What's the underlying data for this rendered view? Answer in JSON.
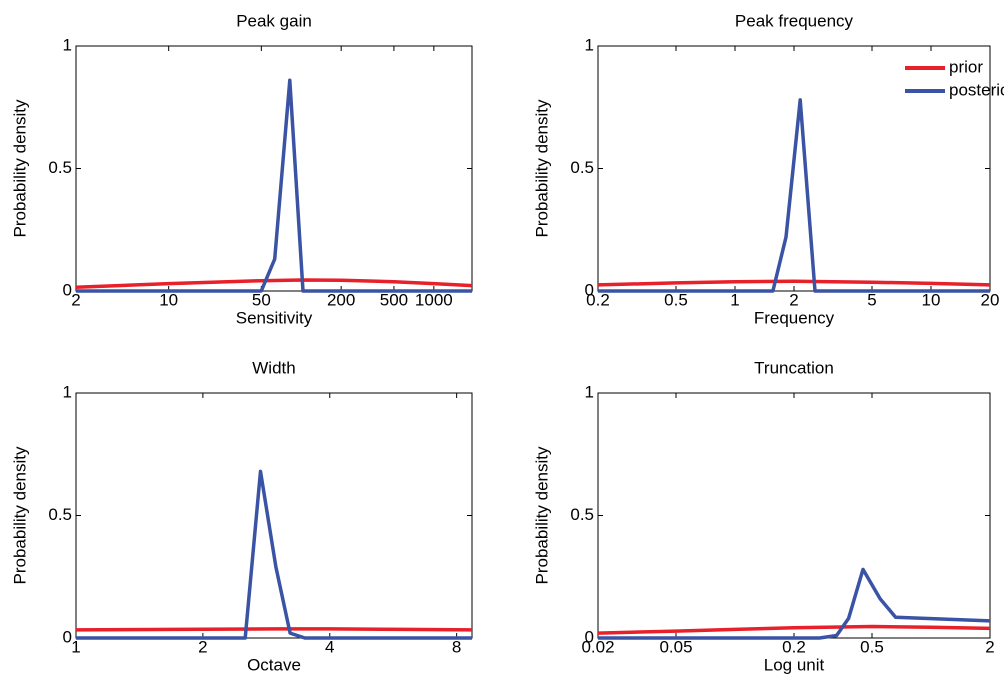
{
  "chart_data": [
    {
      "type": "line",
      "title": "Peak gain",
      "xlabel": "Sensitivity",
      "ylabel": "Probability density",
      "log_x": true,
      "xlim": [
        2,
        1940
      ],
      "xticks": [
        2,
        10,
        50,
        200,
        500,
        1000
      ],
      "ylim": [
        0,
        1
      ],
      "yticks": [
        0,
        0.5,
        1
      ],
      "series": [
        {
          "color": "#e8202a",
          "x": [
            2,
            10,
            50,
            100,
            200,
            500,
            1000,
            1940
          ],
          "values": [
            0.015,
            0.03,
            0.042,
            0.045,
            0.044,
            0.038,
            0.03,
            0.022
          ]
        },
        {
          "color": "#3a53a4",
          "x": [
            2,
            50,
            63,
            82,
            103,
            1940
          ],
          "values": [
            0,
            0,
            0.13,
            0.86,
            0,
            0
          ]
        }
      ]
    },
    {
      "type": "line",
      "title": "Peak frequency",
      "xlabel": "Frequency",
      "ylabel": "Probability density",
      "log_x": true,
      "xlim": [
        0.2,
        20
      ],
      "xticks": [
        0.2,
        0.5,
        1,
        2,
        5,
        10,
        20
      ],
      "ylim": [
        0,
        1
      ],
      "yticks": [
        0,
        0.5,
        1
      ],
      "legend": "upper right",
      "series": [
        {
          "name": "prior",
          "color": "#e8202a",
          "x": [
            0.2,
            0.5,
            1,
            2,
            5,
            10,
            20
          ],
          "values": [
            0.025,
            0.033,
            0.038,
            0.04,
            0.036,
            0.031,
            0.025
          ]
        },
        {
          "name": "posterior",
          "color": "#3a53a4",
          "x": [
            0.2,
            1.56,
            1.82,
            2.15,
            2.56,
            20
          ],
          "values": [
            0,
            0,
            0.22,
            0.78,
            0,
            0
          ]
        }
      ]
    },
    {
      "type": "line",
      "title": "Width",
      "xlabel": "Octave",
      "ylabel": "Probability density",
      "log_x": true,
      "xlim": [
        1,
        8.7
      ],
      "xticks": [
        1,
        2,
        4,
        8
      ],
      "ylim": [
        0,
        1
      ],
      "yticks": [
        0,
        0.5,
        1
      ],
      "series": [
        {
          "color": "#e8202a",
          "x": [
            1,
            2,
            3,
            4,
            6,
            8.7
          ],
          "values": [
            0.033,
            0.036,
            0.037,
            0.037,
            0.035,
            0.033
          ]
        },
        {
          "color": "#3a53a4",
          "x": [
            1,
            2.52,
            2.74,
            2.98,
            3.22,
            3.49,
            8.7
          ],
          "values": [
            0,
            0,
            0.68,
            0.29,
            0.02,
            0,
            0
          ]
        }
      ]
    },
    {
      "type": "line",
      "title": "Truncation",
      "xlabel": "Log unit",
      "ylabel": "Probability density",
      "log_x": true,
      "xlim": [
        0.02,
        2
      ],
      "xticks": [
        0.02,
        0.05,
        0.2,
        0.5,
        2
      ],
      "ylim": [
        0,
        1
      ],
      "yticks": [
        0,
        0.5,
        1
      ],
      "series": [
        {
          "color": "#e8202a",
          "x": [
            0.02,
            0.05,
            0.1,
            0.2,
            0.5,
            1,
            2
          ],
          "values": [
            0.02,
            0.028,
            0.035,
            0.042,
            0.047,
            0.044,
            0.039
          ]
        },
        {
          "color": "#3a53a4",
          "x": [
            0.02,
            0.27,
            0.33,
            0.38,
            0.45,
            0.55,
            0.66,
            2
          ],
          "values": [
            0,
            0,
            0.01,
            0.08,
            0.28,
            0.16,
            0.085,
            0.07
          ]
        }
      ]
    }
  ]
}
